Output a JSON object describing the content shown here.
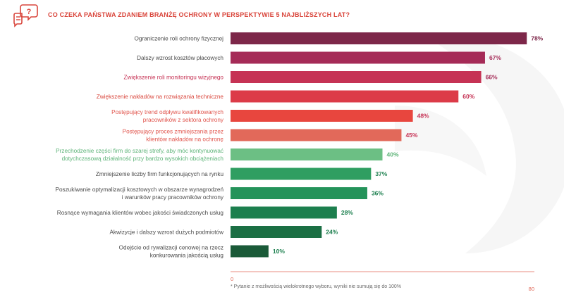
{
  "header": {
    "title": "CO CZEKA PAŃSTWA ZDANIEM BRANŻĘ OCHRONY W PERSPEKTYWIE 5 NAJBLIŻSZYCH LAT?",
    "icon": "chat-question-icon"
  },
  "colors": {
    "accent": "#d9453b",
    "axis": "#e06858",
    "label_text": "#4a4a4a"
  },
  "chart_data": {
    "type": "bar",
    "orientation": "horizontal",
    "xlim": [
      0,
      80
    ],
    "tick_labels": [
      "0",
      "80"
    ],
    "categories": [
      [
        "Ograniczenie roli ochrony fizycznej"
      ],
      [
        "Dalszy wzrost kosztów płacowych"
      ],
      [
        "Zwiększenie roli monitoringu wizyjnego"
      ],
      [
        "Zwiększenie nakładów na rozwiązania techniczne"
      ],
      [
        "Postępujący trend odpływu kwalifikowanych",
        "pracowników z sektora ochrony"
      ],
      [
        "Postępujący proces zmniejszania przez",
        "klientów nakładów na ochronę"
      ],
      [
        "Przechodzenie części firm do szarej strefy, aby móc kontynuować",
        "dotychczasową działalność przy bardzo wysokich obciążeniach"
      ],
      [
        "Zmniejszenie liczby firm funkcjonujących na rynku"
      ],
      [
        "Poszukiwanie optymalizacji kosztowych w obszarze wynagrodzeń",
        "i warunków pracy pracowników ochrony"
      ],
      [
        "Rosnące wymagania klientów wobec jakości świadczonych usług"
      ],
      [
        "Akwizycje i dalszy wzrost dużych podmiotów"
      ],
      [
        "Odejście od rywalizacji cenowej na rzecz",
        "konkurowania jakością usług"
      ]
    ],
    "values": [
      78,
      67,
      66,
      60,
      48,
      45,
      40,
      37,
      36,
      28,
      24,
      10
    ],
    "value_labels": [
      "78%",
      "67%",
      "66%",
      "60%",
      "48%",
      "45%",
      "40%",
      "37%",
      "36%",
      "28%",
      "24%",
      "10%"
    ],
    "bar_colors": [
      "#7d2749",
      "#a52b57",
      "#c63254",
      "#dc3b48",
      "#e8463e",
      "#e2695a",
      "#6cbf84",
      "#2f9e61",
      "#24935a",
      "#1c7f4e",
      "#1b6f44",
      "#1a5a38"
    ],
    "label_colors": [
      "#4a4a4a",
      "#4a4a4a",
      "#c63254",
      "#d9453b",
      "#e0524a",
      "#e0524a",
      "#5cb377",
      "#4a4a4a",
      "#4a4a4a",
      "#4a4a4a",
      "#4a4a4a",
      "#4a4a4a"
    ],
    "value_label_colors": [
      "#7d2749",
      "#a52b57",
      "#a52b57",
      "#c63254",
      "#c63254",
      "#c63254",
      "#5cb377",
      "#1c7f4e",
      "#1c7f4e",
      "#1c7f4e",
      "#1c7f4e",
      "#1c7f4e"
    ]
  },
  "footnote": "* Pytanie z możliwością wielokrotnego wyboru, wyniki nie sumują się do 100%"
}
